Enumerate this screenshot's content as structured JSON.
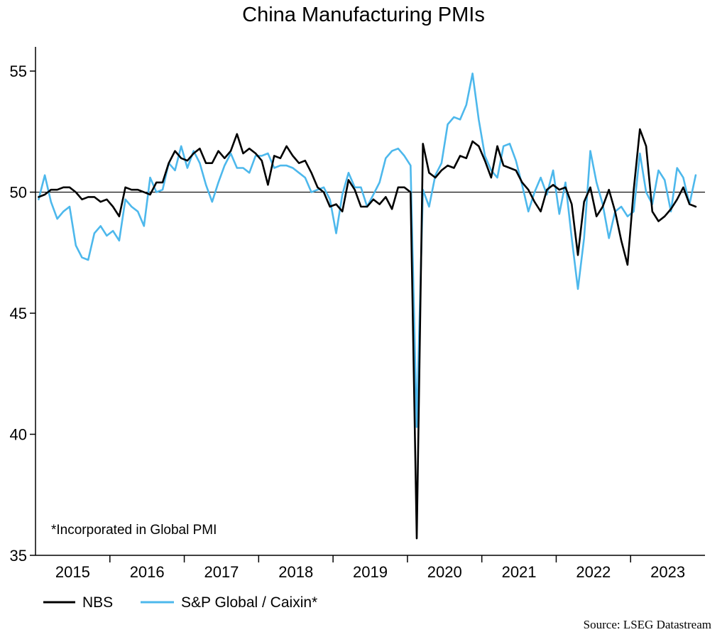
{
  "chart_data": {
    "type": "line",
    "title": "China Manufacturing PMIs",
    "note": "*Incorporated in Global PMI",
    "source": "Source: LSEG Datastream",
    "ylim": [
      35,
      56
    ],
    "yticks": [
      35,
      40,
      45,
      50,
      55
    ],
    "reference_line": 50,
    "xlim": [
      "2015-01",
      "2023-12"
    ],
    "x_tick_labels": [
      "2015",
      "2016",
      "2017",
      "2018",
      "2019",
      "2020",
      "2021",
      "2022",
      "2023"
    ],
    "legend_placement": "bottom-left",
    "grid": false,
    "series": [
      {
        "name": "NBS",
        "color": "#000000",
        "values": [
          49.8,
          49.9,
          50.1,
          50.1,
          50.2,
          50.2,
          50.0,
          49.7,
          49.8,
          49.8,
          49.6,
          49.7,
          49.4,
          49.0,
          50.2,
          50.1,
          50.1,
          50.0,
          49.9,
          50.4,
          50.4,
          51.2,
          51.7,
          51.4,
          51.3,
          51.6,
          51.8,
          51.2,
          51.2,
          51.7,
          51.4,
          51.7,
          52.4,
          51.6,
          51.8,
          51.6,
          51.3,
          50.3,
          51.5,
          51.4,
          51.9,
          51.5,
          51.2,
          51.3,
          50.8,
          50.2,
          50.0,
          49.4,
          49.5,
          49.2,
          50.5,
          50.1,
          49.4,
          49.4,
          49.7,
          49.5,
          49.8,
          49.3,
          50.2,
          50.2,
          50.0,
          35.7,
          52.0,
          50.8,
          50.6,
          50.9,
          51.1,
          51.0,
          51.5,
          51.4,
          52.1,
          51.9,
          51.3,
          50.6,
          51.9,
          51.1,
          51.0,
          50.9,
          50.4,
          50.1,
          49.6,
          49.2,
          50.1,
          50.3,
          50.1,
          50.2,
          49.5,
          47.4,
          49.6,
          50.2,
          49.0,
          49.4,
          50.1,
          49.2,
          48.0,
          47.0,
          50.1,
          52.6,
          51.9,
          49.2,
          48.8,
          49.0,
          49.3,
          49.7,
          50.2,
          49.5,
          49.4
        ]
      },
      {
        "name": "S&P Global / Caixin*",
        "color": "#4db8ec",
        "values": [
          49.7,
          50.7,
          49.6,
          48.9,
          49.2,
          49.4,
          47.8,
          47.3,
          47.2,
          48.3,
          48.6,
          48.2,
          48.4,
          48.0,
          49.7,
          49.4,
          49.2,
          48.6,
          50.6,
          50.0,
          50.1,
          51.2,
          50.9,
          51.9,
          51.0,
          51.7,
          51.2,
          50.3,
          49.6,
          50.4,
          51.1,
          51.6,
          51.0,
          51.0,
          50.8,
          51.5,
          51.5,
          51.6,
          51.0,
          51.1,
          51.1,
          51.0,
          50.8,
          50.6,
          50.0,
          50.1,
          50.2,
          49.7,
          48.3,
          49.9,
          50.8,
          50.2,
          50.2,
          49.4,
          49.9,
          50.4,
          51.4,
          51.7,
          51.8,
          51.5,
          51.1,
          40.3,
          50.1,
          49.4,
          50.7,
          51.2,
          52.8,
          53.1,
          53.0,
          53.6,
          54.9,
          53.0,
          51.5,
          50.9,
          50.6,
          51.9,
          52.0,
          51.3,
          50.3,
          49.2,
          50.0,
          50.6,
          49.9,
          50.9,
          49.1,
          50.4,
          48.1,
          46.0,
          48.1,
          51.7,
          50.4,
          49.5,
          48.1,
          49.2,
          49.4,
          49.0,
          49.2,
          51.6,
          50.0,
          49.5,
          50.9,
          50.5,
          49.2,
          51.0,
          50.6,
          49.5,
          50.7
        ]
      }
    ]
  }
}
